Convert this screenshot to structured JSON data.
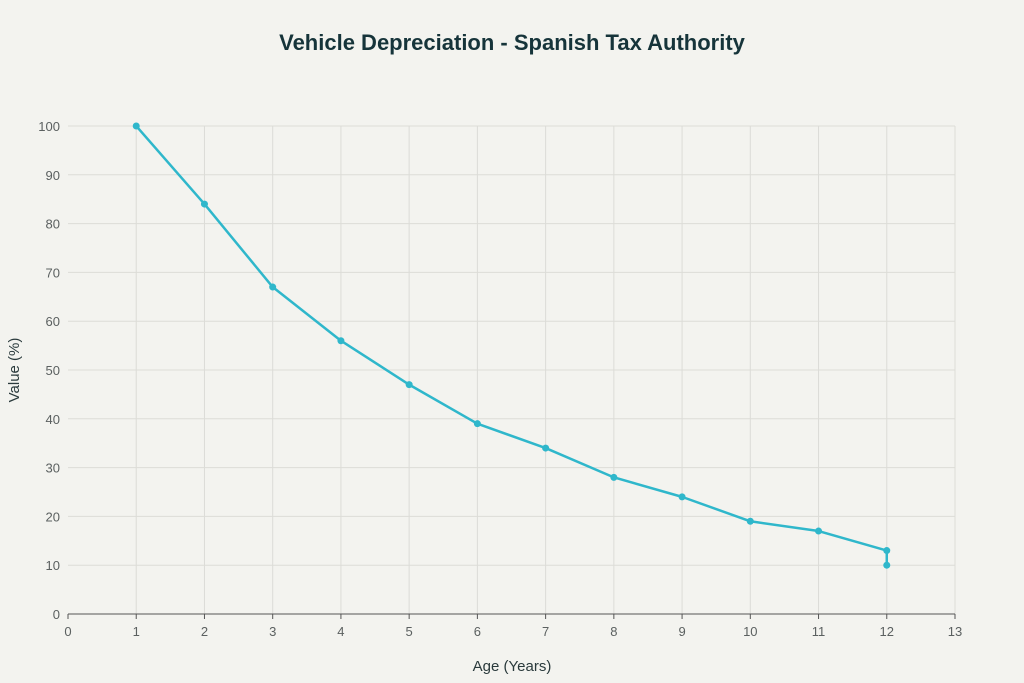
{
  "chart_data": {
    "type": "line",
    "title": "Vehicle Depreciation - Spanish Tax Authority",
    "xlabel": "Age (Years)",
    "ylabel": "Value (%)",
    "xlim": [
      0,
      13
    ],
    "ylim": [
      0,
      100
    ],
    "xticks": [
      0,
      1,
      2,
      3,
      4,
      5,
      6,
      7,
      8,
      9,
      10,
      11,
      12,
      13
    ],
    "yticks": [
      0,
      10,
      20,
      30,
      40,
      50,
      60,
      70,
      80,
      90,
      100
    ],
    "grid": true,
    "series": [
      {
        "name": "Value",
        "color": "#2fb7cb",
        "x": [
          1,
          2,
          3,
          4,
          5,
          6,
          7,
          8,
          9,
          10,
          11,
          12,
          12
        ],
        "y": [
          100,
          84,
          67,
          56,
          47,
          39,
          34,
          28,
          24,
          19,
          17,
          13,
          10
        ]
      }
    ]
  }
}
